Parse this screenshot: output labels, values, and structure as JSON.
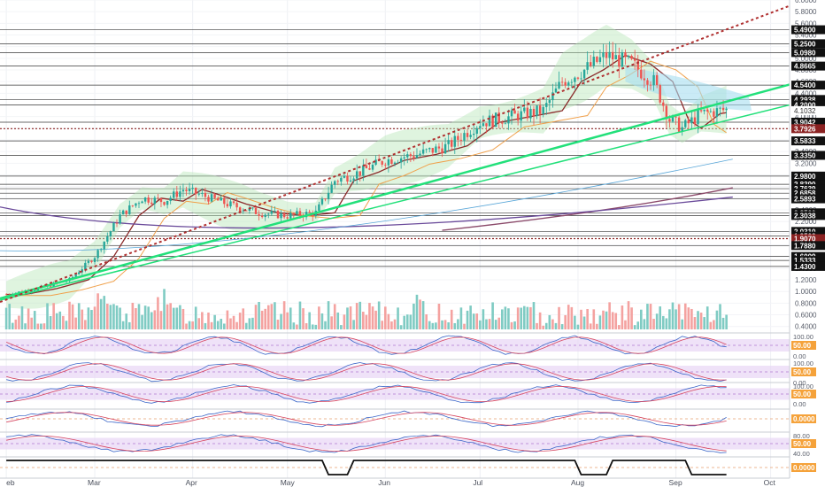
{
  "chart_data": {
    "type": "candlestick",
    "title": "",
    "xlabel": "",
    "ylabel": "",
    "grid": true,
    "x_months": [
      "eb",
      "Mar",
      "Apr",
      "May",
      "Jun",
      "Jul",
      "Aug",
      "Sep",
      "Oct"
    ],
    "x_month_days": [
      0,
      28,
      59,
      89,
      120,
      150,
      181,
      212,
      242
    ],
    "x_range_days": [
      -2,
      248
    ],
    "ylim": [
      0.35,
      6.0
    ],
    "y_ticks": [
      0.4,
      0.6,
      0.8,
      1.0,
      1.2,
      1.4,
      1.6,
      1.8,
      2.0,
      2.2,
      2.4,
      2.6,
      2.8,
      3.0,
      3.2,
      3.4,
      3.6,
      3.8,
      4.0,
      4.2,
      4.4,
      4.6,
      4.8,
      5.0,
      5.2,
      5.4,
      5.6,
      5.8,
      6.0
    ],
    "y_tick_labels": [
      "0.4000",
      "0.6000",
      "0.8000",
      "1.0000",
      "1.2000",
      "1.4000",
      "1.6000",
      "1.8000",
      "2.0000",
      "2.2000",
      "2.4000",
      "2.6000",
      "2.8000",
      "3.0000",
      "3.2000",
      "3.4000",
      "3.6000",
      "3.8000",
      "4.0000",
      "4.2000",
      "4.4000",
      "4.6000",
      "4.8000",
      "5.0000",
      "5.2000",
      "5.4000",
      "5.6000",
      "5.8000",
      "6.0000"
    ],
    "price_levels": [
      {
        "value": 5.49,
        "label": "5.4900"
      },
      {
        "value": 5.25,
        "label": "5.2500"
      },
      {
        "value": 5.098,
        "label": "5.0980"
      },
      {
        "value": 4.8665,
        "label": "4.8665"
      },
      {
        "value": 4.54,
        "label": "4.5400"
      },
      {
        "value": 4.2938,
        "label": "4.2938"
      },
      {
        "value": 4.2,
        "label": "4.2000"
      },
      {
        "value": 3.9042,
        "label": "3.9042"
      },
      {
        "value": 3.7926,
        "label": "3.7926",
        "dashed": true,
        "color": "#8b2222"
      },
      {
        "value": 3.5833,
        "label": "3.5833"
      },
      {
        "value": 3.335,
        "label": "3.3350"
      },
      {
        "value": 2.98,
        "label": "2.9800"
      },
      {
        "value": 2.839,
        "label": "2.8390"
      },
      {
        "value": 2.7639,
        "label": "2.7639"
      },
      {
        "value": 2.6858,
        "label": "2.6858"
      },
      {
        "value": 2.5893,
        "label": "2.5893"
      },
      {
        "value": 2.35,
        "label": "2.3500"
      },
      {
        "value": 2.3038,
        "label": "2.3038"
      },
      {
        "value": 2.031,
        "label": "2.0310"
      },
      {
        "value": 1.9503,
        "label": "1.9503"
      },
      {
        "value": 1.907,
        "label": "1.9070",
        "dashed": true,
        "color": "#8b2222"
      },
      {
        "value": 1.788,
        "label": "1.7880"
      },
      {
        "value": 1.6009,
        "label": "1.6009"
      },
      {
        "value": 1.5333,
        "label": "1.5333"
      },
      {
        "value": 1.43,
        "label": "1.4300"
      }
    ],
    "current_price": {
      "value": 4.1032,
      "label": "4.1032"
    },
    "key_points": [
      {
        "day": 0,
        "price": 0.95
      },
      {
        "day": 10,
        "price": 1.05
      },
      {
        "day": 20,
        "price": 1.2
      },
      {
        "day": 28,
        "price": 1.6
      },
      {
        "day": 36,
        "price": 2.3
      },
      {
        "day": 43,
        "price": 2.6
      },
      {
        "day": 50,
        "price": 2.55
      },
      {
        "day": 56,
        "price": 2.75
      },
      {
        "day": 62,
        "price": 2.65
      },
      {
        "day": 70,
        "price": 2.5
      },
      {
        "day": 80,
        "price": 2.35
      },
      {
        "day": 89,
        "price": 2.3
      },
      {
        "day": 98,
        "price": 2.35
      },
      {
        "day": 104,
        "price": 2.9
      },
      {
        "day": 112,
        "price": 3.05
      },
      {
        "day": 120,
        "price": 3.25
      },
      {
        "day": 130,
        "price": 3.35
      },
      {
        "day": 140,
        "price": 3.5
      },
      {
        "day": 150,
        "price": 3.9
      },
      {
        "day": 160,
        "price": 4.0
      },
      {
        "day": 170,
        "price": 4.1
      },
      {
        "day": 176,
        "price": 4.6
      },
      {
        "day": 183,
        "price": 4.8
      },
      {
        "day": 190,
        "price": 5.05
      },
      {
        "day": 198,
        "price": 4.9
      },
      {
        "day": 205,
        "price": 4.6
      },
      {
        "day": 210,
        "price": 3.95
      },
      {
        "day": 214,
        "price": 3.8
      },
      {
        "day": 220,
        "price": 4.05
      },
      {
        "day": 228,
        "price": 4.12
      }
    ],
    "trendlines": [
      {
        "name": "",
        "color": "#22e07a",
        "width": 2.5,
        "from": {
          "day": -2,
          "price": 0.88
        },
        "to": {
          "day": 248,
          "price": 4.55
        }
      },
      {
        "name": "",
        "color": "#22e07a",
        "width": 1.5,
        "from": {
          "day": -2,
          "price": 0.85
        },
        "to": {
          "day": 248,
          "price": 4.2
        }
      },
      {
        "name": "",
        "color": "#b03030",
        "width": 2,
        "dashed": true,
        "from": {
          "day": -2,
          "price": 0.82
        },
        "to": {
          "day": 248,
          "price": 5.9
        }
      }
    ],
    "indicators": [
      {
        "name": "stoch1",
        "lines": [
          "100.00",
          "50.00",
          "0.00"
        ],
        "band": [
          20,
          80
        ]
      },
      {
        "name": "stoch2",
        "lines": [
          "100.00",
          "50.00",
          "0.00"
        ],
        "band": [
          20,
          80
        ]
      },
      {
        "name": "rsi3",
        "lines": [
          "100.00",
          "50.00",
          "0.00"
        ],
        "band": [
          30,
          70
        ]
      },
      {
        "name": "macd",
        "lines": [
          "0.0000"
        ]
      },
      {
        "name": "rsi",
        "lines": [
          "80.00",
          "50.00",
          "40.00"
        ],
        "band": [
          40,
          80
        ]
      },
      {
        "name": "signal",
        "lines": [
          "0.0000"
        ]
      }
    ]
  }
}
